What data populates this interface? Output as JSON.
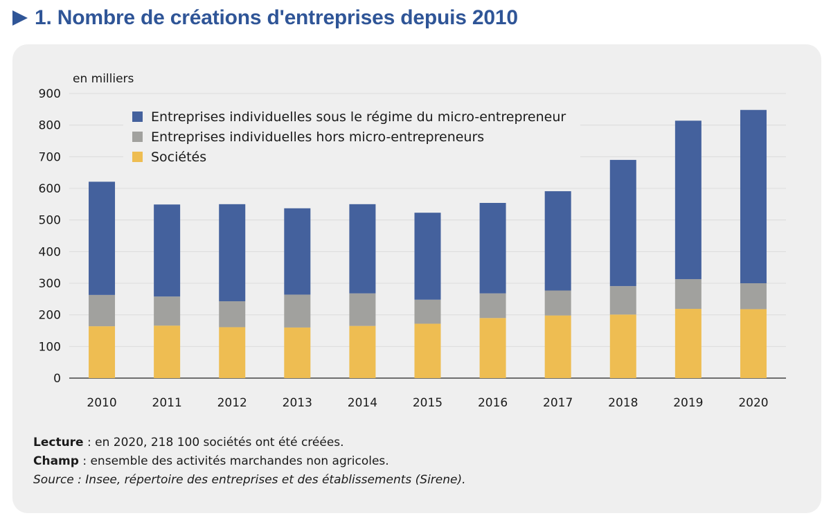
{
  "title": "1. Nombre de créations d'entreprises depuis 2010",
  "colors": {
    "title": "#2f5597",
    "micro": "#44619d",
    "hors_micro": "#a1a19e",
    "societes": "#eebd52",
    "panel": "#efefef",
    "grid": "#dcdcdc"
  },
  "chart_data": {
    "type": "bar",
    "stacked": true,
    "unit_label": "en milliers",
    "categories": [
      "2010",
      "2011",
      "2012",
      "2013",
      "2014",
      "2015",
      "2016",
      "2017",
      "2018",
      "2019",
      "2020"
    ],
    "series": [
      {
        "name": "Sociétés",
        "color": "#eebd52",
        "values": [
          164,
          166,
          161,
          160,
          165,
          172,
          190,
          198,
          201,
          219,
          218
        ]
      },
      {
        "name": "Entreprises individuelles hors micro-entrepreneurs",
        "color": "#a1a19e",
        "values": [
          99,
          92,
          82,
          104,
          103,
          76,
          78,
          79,
          90,
          94,
          82
        ]
      },
      {
        "name": "Entreprises individuelles sous le régime du micro-entrepreneur",
        "color": "#44619d",
        "values": [
          358,
          291,
          307,
          273,
          282,
          275,
          286,
          314,
          399,
          501,
          548
        ]
      }
    ],
    "legend_order": [
      "Entreprises individuelles sous le régime du micro-entrepreneur",
      "Entreprises individuelles hors micro-entrepreneurs",
      "Sociétés"
    ],
    "ylim": [
      0,
      900
    ],
    "yticks": [
      0,
      100,
      200,
      300,
      400,
      500,
      600,
      700,
      800,
      900
    ],
    "grid": true,
    "legend_position": "top-center"
  },
  "notes": {
    "lecture_label": "Lecture",
    "lecture_text": " : en 2020, 218 100 sociétés ont été créées.",
    "champ_label": "Champ",
    "champ_text": " : ensemble des activités marchandes non agricoles.",
    "source_text": "Source : Insee, répertoire des entreprises et des établissements (Sirene)."
  }
}
